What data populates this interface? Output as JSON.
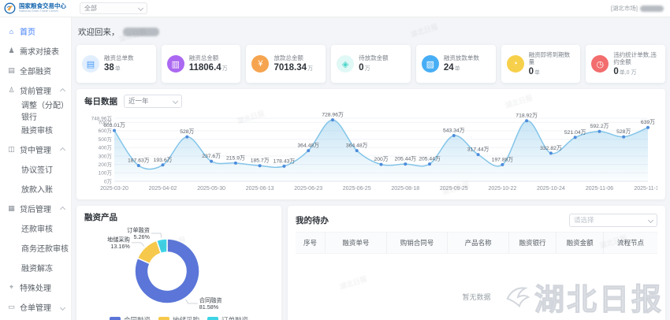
{
  "header": {
    "brand_title": "国家粮食交易中心",
    "brand_subtitle": "National Grain Trade Center",
    "market_select_value": "全部",
    "user_market_label": "[湖北市场]"
  },
  "sidebar": {
    "items": [
      {
        "label": "首页",
        "icon": "home-icon",
        "active": true,
        "children": []
      },
      {
        "label": "需求对接表",
        "icon": "demand-form-icon",
        "children": []
      },
      {
        "label": "全部融资",
        "icon": "all-financing-icon",
        "children": []
      },
      {
        "label": "贷前管理",
        "icon": "pre-loan-icon",
        "expandable": true,
        "expanded": true,
        "children": [
          "调整（分配）银行",
          "融资审核"
        ]
      },
      {
        "label": "贷中管理",
        "icon": "mid-loan-icon",
        "expandable": true,
        "expanded": true,
        "children": [
          "协议签订",
          "放款入账"
        ]
      },
      {
        "label": "贷后管理",
        "icon": "post-loan-icon",
        "expandable": true,
        "expanded": true,
        "children": [
          "还款审核",
          "商务还款审核",
          "融资解冻"
        ]
      },
      {
        "label": "特殊处理",
        "icon": "special-handling-icon",
        "children": []
      },
      {
        "label": "仓单管理",
        "icon": "warehouse-receipt-icon",
        "expandable": true,
        "expanded": false,
        "children": []
      }
    ]
  },
  "main": {
    "welcome_prefix": "欢迎回来，",
    "stat_cards": [
      {
        "label": "融资总单数",
        "value": "38",
        "unit": "单",
        "color": "#4C9DF8",
        "variant": "tint",
        "icon": "doc-icon"
      },
      {
        "label": "融资总金额",
        "value": "11806.4",
        "unit": "万",
        "color": "#AB68F0",
        "variant": "solid",
        "icon": "money-icon"
      },
      {
        "label": "放款总金额",
        "value": "7018.34",
        "unit": "万",
        "color": "#F6A44F",
        "variant": "solid",
        "icon": "coin-icon"
      },
      {
        "label": "待放款金额",
        "value": "0",
        "unit": "万",
        "color": "#49D6C9",
        "variant": "tint",
        "icon": "pending-icon"
      },
      {
        "label": "融资放款单数",
        "value": "24",
        "unit": "单",
        "color": "#47AEF5",
        "variant": "solid",
        "icon": "transfer-icon"
      },
      {
        "label": "融资即将到期数量",
        "value": "0",
        "unit": "单",
        "color": "#F7D04B",
        "variant": "solid",
        "icon": "alarm-icon"
      },
      {
        "label": "违约统计单数,违约金额",
        "value": "0",
        "unit": "单,0 万",
        "color": "#F26D6D",
        "variant": "solid",
        "icon": "clock-icon"
      }
    ],
    "daily_panel": {
      "title": "每日数据",
      "range_select_value": "近一年"
    },
    "product_panel": {
      "title": "融资产品"
    },
    "todo_panel": {
      "title": "我的待办",
      "select_placeholder": "请选择",
      "columns": [
        "序号",
        "融资单号",
        "购销合同号",
        "产品名称",
        "融资银行",
        "融资金额",
        "流程节点"
      ],
      "empty_text": "暂无数据"
    }
  },
  "chart_data": [
    {
      "type": "line",
      "title": "每日数据",
      "series": [
        {
          "name": "每日数据",
          "values": [
            603.01,
            187.63,
            193.6,
            528,
            237.6,
            215.9,
            185.7,
            178.43,
            364.48,
            728.96,
            364.48,
            200,
            205.44,
            205.44,
            543.34,
            317.44,
            197.88,
            718.92,
            332.82,
            521.04,
            592.2,
            528,
            639
          ]
        }
      ],
      "point_labels": [
        "603.01万",
        "187.63万",
        "193.6万",
        "528万",
        "237.6万",
        "215.9万",
        "185.7万",
        "178.43万",
        "364.48万",
        "728.96万",
        "364.48万",
        "200万",
        "205.44万",
        "205.44万",
        "543.34万",
        "317.44万",
        "197.88万",
        "718.92万",
        "332.82万",
        "521.04万",
        "592.2万",
        "528万",
        "639万"
      ],
      "x_tick_labels": [
        "2025-03-20",
        "2025-04-02",
        "2025-05-30",
        "2025-06-13",
        "2025-06-23",
        "2025-06-25",
        "2025-08-18",
        "2025-09-25",
        "2025-10-22",
        "2025-10-24",
        "2025-11-06",
        "2025-11-18"
      ],
      "yticks": [
        {
          "v": 0,
          "label": "0万"
        },
        {
          "v": 100,
          "label": "100万"
        },
        {
          "v": 200,
          "label": "200万"
        },
        {
          "v": 300,
          "label": "300万"
        },
        {
          "v": 400,
          "label": "400万"
        },
        {
          "v": 500,
          "label": "500万"
        },
        {
          "v": 600,
          "label": "600万"
        },
        {
          "v": 700,
          "label": "700万"
        },
        {
          "v": 748.96,
          "label": "748.96万"
        }
      ],
      "ylim": [
        0,
        748.96
      ],
      "grid": true,
      "line_color": "#84C5E9",
      "point_color": "#4D8CDB",
      "area_from": "rgba(132,197,233,0.45)",
      "area_to": "rgba(132,197,233,0.03)"
    },
    {
      "type": "pie",
      "title": "融资产品",
      "donut": true,
      "legend_position": "bottom",
      "slices": [
        {
          "name": "合同融资",
          "pct": 81.58,
          "label": "合同融资\n81.58%",
          "color": "#5B76D8"
        },
        {
          "name": "地储采购",
          "pct": 13.16,
          "label": "地储采购\n13.16%",
          "color": "#F6C94C"
        },
        {
          "name": "订单融资",
          "pct": 5.26,
          "label": "订单融资\n5.26%",
          "color": "#3ED3E5"
        }
      ]
    }
  ],
  "watermark": {
    "text": "湖北日报"
  }
}
